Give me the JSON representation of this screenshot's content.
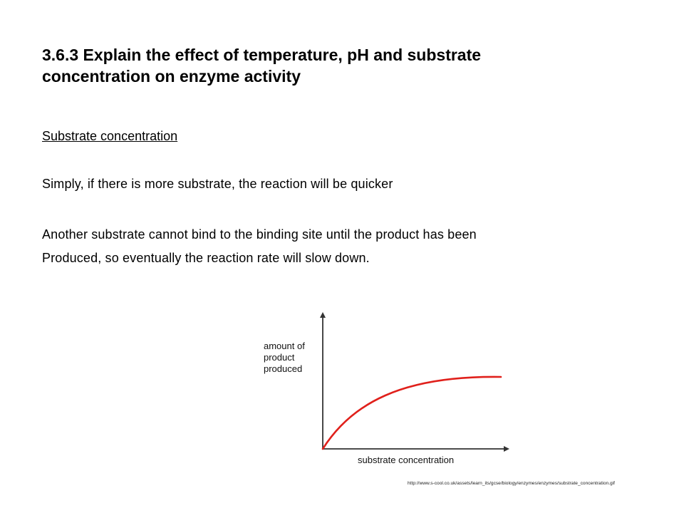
{
  "slide": {
    "title_lines": [
      "3.6.3 Explain the effect of temperature, pH and substrate",
      "concentration on enzyme activity"
    ],
    "section_heading": "Substrate concentration",
    "paragraph_1": "Simply, if there is more substrate, the reaction will be quicker",
    "paragraph_2_lines": [
      "Another substrate cannot bind to the binding site until the product has been",
      "Produced, so eventually the reaction rate will slow down."
    ],
    "source_url": "http://www.s-cool.co.uk/assets/learn_its/gcse/biology/enzymes/enzymes/substrate_concentration.gif"
  },
  "figure": {
    "y_label_lines": [
      "amount of",
      "product",
      "produced"
    ],
    "x_label": "substrate concentration",
    "curve_color": "#e0201b",
    "axis_color": "#333333"
  }
}
